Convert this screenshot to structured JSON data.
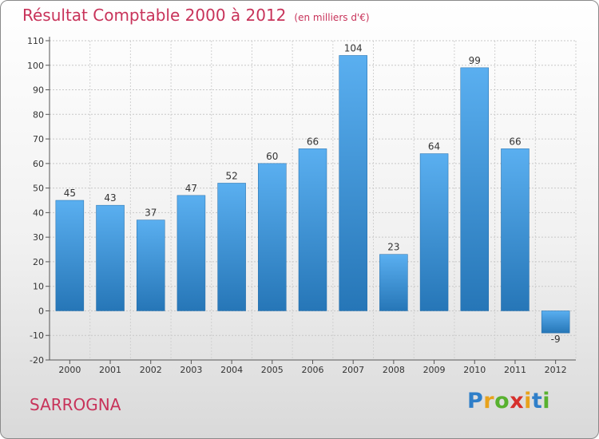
{
  "title": "Résultat Comptable 2000 à 2012",
  "subtitle": "(en milliers d'€)",
  "commune": "SARROGNA",
  "logo": {
    "letters": [
      "P",
      "r",
      "o",
      "x",
      "i",
      "t",
      "i"
    ],
    "colors": [
      "#2f7fc9",
      "#e8a21c",
      "#58b12f",
      "#d6302c",
      "#e8a21c",
      "#2f7fc9",
      "#58b12f"
    ]
  },
  "colors": {
    "title": "#c8335a",
    "bar_top": "#5aaff0",
    "bar_bottom": "#2676b7"
  },
  "chart_data": {
    "type": "bar",
    "categories": [
      "2000",
      "2001",
      "2002",
      "2003",
      "2004",
      "2005",
      "2006",
      "2007",
      "2008",
      "2009",
      "2010",
      "2011",
      "2012"
    ],
    "values": [
      45,
      43,
      37,
      47,
      52,
      60,
      66,
      104,
      23,
      64,
      99,
      66,
      -9
    ],
    "data_labels": [
      "45",
      "43",
      "37",
      "47",
      "52",
      "60",
      "66",
      "104",
      "23",
      "64",
      "99",
      "66",
      "-9"
    ],
    "yticks": [
      "-20",
      "-10",
      "0",
      "10",
      "20",
      "30",
      "40",
      "50",
      "60",
      "70",
      "80",
      "90",
      "100",
      "110"
    ],
    "ylim": [
      -20,
      110
    ],
    "ystep": 10,
    "grid": true,
    "legend": "none"
  }
}
